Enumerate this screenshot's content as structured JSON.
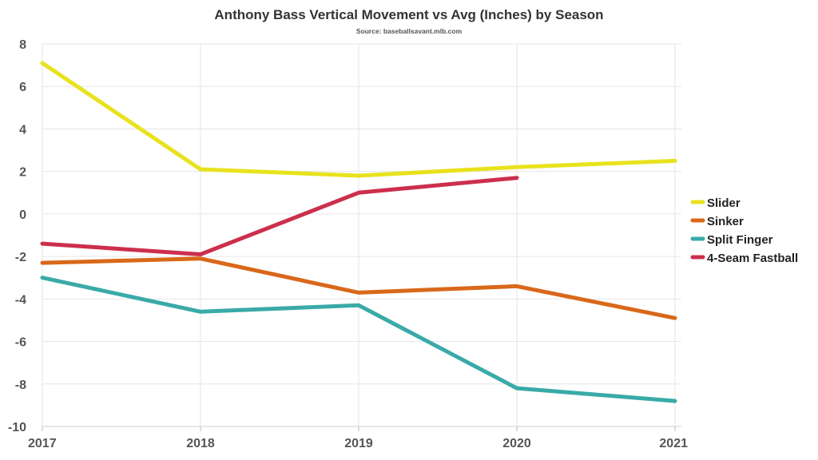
{
  "chart_data": {
    "type": "line",
    "title": "Anthony Bass Vertical Movement vs Avg (Inches) by Season",
    "subtitle": "Source: baseballsavant.mlb.com",
    "xlabel": "",
    "ylabel": "",
    "x": [
      "2017",
      "2018",
      "2019",
      "2020",
      "2021"
    ],
    "ylim": [
      -10,
      8
    ],
    "yticks": [
      8,
      6,
      4,
      2,
      0,
      -2,
      -4,
      -6,
      -8,
      -10
    ],
    "grid": true,
    "legend_position": "right",
    "series": [
      {
        "name": "Slider",
        "color": "#e8e21e",
        "values": [
          7.1,
          2.1,
          1.8,
          2.2,
          2.5
        ]
      },
      {
        "name": "Sinker",
        "color": "#d9681a",
        "values": [
          -2.3,
          -2.1,
          -3.7,
          -3.4,
          -4.9
        ]
      },
      {
        "name": "Split Finger",
        "color": "#3aaaa8",
        "values": [
          -3.0,
          -4.6,
          -4.3,
          -8.2,
          -8.8
        ]
      },
      {
        "name": "4-Seam Fastball",
        "color": "#cc2f4c",
        "values": [
          -1.4,
          -1.9,
          1.0,
          1.7,
          null
        ]
      }
    ]
  }
}
